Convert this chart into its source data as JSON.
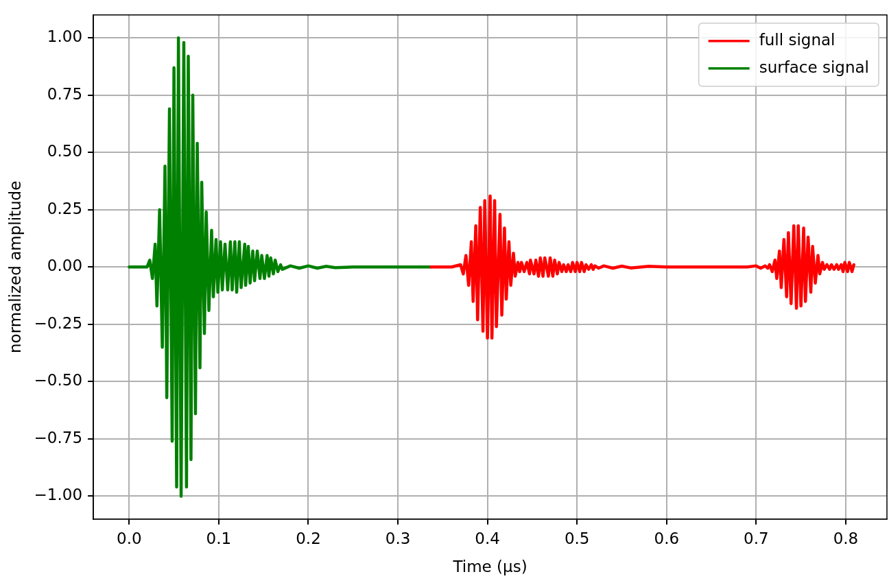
{
  "chart_data": {
    "type": "line",
    "xlabel": "Time (µs)",
    "ylabel": "normalized amplitude",
    "xlim": [
      -0.04,
      0.846
    ],
    "ylim": [
      -1.1,
      1.1
    ],
    "xticks": [
      {
        "value": 0,
        "label": "0.0"
      },
      {
        "value": 0.1,
        "label": "0.1"
      },
      {
        "value": 0.2,
        "label": "0.2"
      },
      {
        "value": 0.3,
        "label": "0.3"
      },
      {
        "value": 0.4,
        "label": "0.4"
      },
      {
        "value": 0.5,
        "label": "0.5"
      },
      {
        "value": 0.6,
        "label": "0.6"
      },
      {
        "value": 0.7,
        "label": "0.7"
      },
      {
        "value": 0.8,
        "label": "0.8"
      }
    ],
    "yticks": [
      {
        "value": -1,
        "label": "−1.00"
      },
      {
        "value": -0.75,
        "label": "−0.75"
      },
      {
        "value": -0.5,
        "label": "−0.50"
      },
      {
        "value": -0.25,
        "label": "−0.25"
      },
      {
        "value": 0,
        "label": "0.00"
      },
      {
        "value": 0.25,
        "label": "0.25"
      },
      {
        "value": 0.5,
        "label": "0.50"
      },
      {
        "value": 0.75,
        "label": "0.75"
      },
      {
        "value": 1,
        "label": "1.00"
      }
    ],
    "grid": true,
    "legend": "top right",
    "marker": "none",
    "line_style": "solid",
    "series": [
      {
        "name": "full signal",
        "color": "#ff0000",
        "x": [
          0.337,
          0.36,
          0.37,
          0.373,
          0.376,
          0.379,
          0.382,
          0.384,
          0.387,
          0.389,
          0.392,
          0.395,
          0.397,
          0.4,
          0.403,
          0.405,
          0.408,
          0.41,
          0.414,
          0.416,
          0.419,
          0.421,
          0.424,
          0.426,
          0.429,
          0.431,
          0.434,
          0.436,
          0.438,
          0.441,
          0.444,
          0.447,
          0.448,
          0.452,
          0.454,
          0.457,
          0.459,
          0.462,
          0.464,
          0.468,
          0.47,
          0.473,
          0.475,
          0.478,
          0.48,
          0.483,
          0.485,
          0.488,
          0.49,
          0.493,
          0.495,
          0.498,
          0.5,
          0.503,
          0.505,
          0.508,
          0.51,
          0.513,
          0.516,
          0.518,
          0.52,
          0.524,
          0.53,
          0.54,
          0.55,
          0.56,
          0.58,
          0.6,
          0.69,
          0.7,
          0.705,
          0.71,
          0.713,
          0.715,
          0.718,
          0.721,
          0.723,
          0.726,
          0.728,
          0.731,
          0.734,
          0.736,
          0.739,
          0.742,
          0.745,
          0.747,
          0.75,
          0.753,
          0.755,
          0.758,
          0.761,
          0.763,
          0.766,
          0.769,
          0.771,
          0.774,
          0.776,
          0.779,
          0.782,
          0.784,
          0.787,
          0.79,
          0.792,
          0.795,
          0.797,
          0.799,
          0.802,
          0.804,
          0.807,
          0.809
        ],
        "values": [
          0,
          0,
          0.01,
          -0.03,
          0.05,
          -0.08,
          0.11,
          -0.15,
          0.18,
          -0.23,
          0.26,
          -0.28,
          0.29,
          -0.31,
          0.31,
          -0.31,
          0.29,
          -0.26,
          0.23,
          -0.21,
          0.17,
          -0.14,
          0.11,
          -0.08,
          0.06,
          -0.04,
          0.02,
          -0.02,
          0.02,
          -0.02,
          0.02,
          -0.03,
          0.03,
          -0.03,
          0.03,
          -0.04,
          0.04,
          -0.04,
          0.04,
          -0.04,
          0.04,
          -0.04,
          0.03,
          -0.03,
          0.02,
          -0.02,
          0.01,
          -0.02,
          0.01,
          -0.02,
          0.02,
          -0.02,
          0.02,
          -0.02,
          0.02,
          -0.02,
          0.01,
          -0.01,
          0.01,
          -0.01,
          0.005,
          -0.005,
          0.005,
          -0.005,
          0.004,
          -0.004,
          0.003,
          0,
          0,
          0.005,
          -0.005,
          0.005,
          -0.005,
          0.01,
          -0.02,
          0.03,
          -0.05,
          0.07,
          -0.09,
          0.12,
          -0.13,
          0.15,
          -0.16,
          0.18,
          -0.18,
          0.18,
          -0.17,
          0.17,
          -0.15,
          0.13,
          -0.11,
          0.09,
          -0.07,
          0.05,
          -0.03,
          0.02,
          -0.01,
          0.01,
          -0.01,
          0.01,
          -0.01,
          0.01,
          -0.01,
          0.01,
          -0.02,
          0.02,
          -0.02,
          0.02,
          -0.02,
          0.01
        ]
      },
      {
        "name": "surface signal",
        "color": "#008000",
        "x": [
          0,
          0.02,
          0.023,
          0.026,
          0.029,
          0.031,
          0.034,
          0.037,
          0.04,
          0.042,
          0.045,
          0.048,
          0.05,
          0.053,
          0.055,
          0.058,
          0.061,
          0.064,
          0.066,
          0.069,
          0.071,
          0.074,
          0.076,
          0.079,
          0.081,
          0.084,
          0.086,
          0.089,
          0.092,
          0.094,
          0.097,
          0.099,
          0.102,
          0.104,
          0.107,
          0.11,
          0.113,
          0.115,
          0.118,
          0.12,
          0.123,
          0.125,
          0.129,
          0.13,
          0.133,
          0.135,
          0.138,
          0.14,
          0.143,
          0.146,
          0.148,
          0.151,
          0.154,
          0.156,
          0.158,
          0.161,
          0.163,
          0.166,
          0.169,
          0.171,
          0.18,
          0.19,
          0.2,
          0.21,
          0.22,
          0.23,
          0.25,
          0.337
        ],
        "values": [
          0,
          0,
          0.03,
          -0.05,
          0.1,
          -0.17,
          0.25,
          -0.35,
          0.44,
          -0.57,
          0.69,
          -0.76,
          0.87,
          -0.96,
          1,
          -1,
          0.98,
          -0.96,
          0.92,
          -0.84,
          0.75,
          -0.64,
          0.54,
          -0.44,
          0.37,
          -0.29,
          0.24,
          -0.19,
          0.16,
          -0.13,
          0.12,
          -0.11,
          0.11,
          -0.1,
          0.1,
          -0.1,
          0.11,
          -0.1,
          0.11,
          -0.11,
          0.11,
          -0.09,
          0.1,
          -0.08,
          0.09,
          -0.07,
          0.07,
          -0.06,
          0.07,
          -0.05,
          0.05,
          -0.05,
          0.05,
          -0.04,
          0.04,
          -0.03,
          0.03,
          -0.02,
          0.01,
          -0.01,
          0.005,
          -0.005,
          0.005,
          -0.005,
          0.003,
          -0.003,
          0,
          0
        ]
      }
    ]
  }
}
